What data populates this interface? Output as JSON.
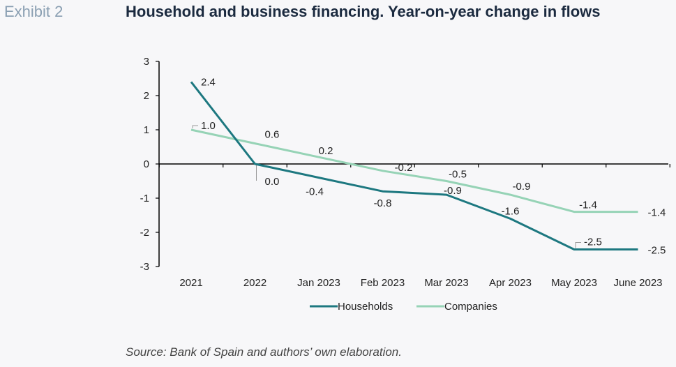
{
  "header": {
    "exhibit_label": "Exhibit 2",
    "title": "Household and business financing. Year-on-year change in flows"
  },
  "footer": {
    "source": "Source: Bank of Spain and authors’ own elaboration."
  },
  "chart_data": {
    "type": "line",
    "title": "Household and business financing. Year-on-year change in flows",
    "xlabel": "",
    "ylabel": "",
    "categories": [
      "2021",
      "2022",
      "Jan 2023",
      "Feb 2023",
      "Mar 2023",
      "Apr 2023",
      "May 2023",
      "June 2023"
    ],
    "ylim": [
      -3,
      3
    ],
    "yticks": [
      3,
      2,
      1,
      0,
      -1,
      -2,
      -3
    ],
    "grid": false,
    "legend": "bottom",
    "series": [
      {
        "name": "Households",
        "color": "#1d7880",
        "values": [
          2.4,
          0.0,
          -0.4,
          -0.8,
          -0.9,
          -1.6,
          -2.5,
          -2.5
        ],
        "labels": [
          "2.4",
          "0.0",
          "-0.4",
          "-0.8",
          "-0.9",
          "-1.6",
          "-2.5",
          "-2.5"
        ]
      },
      {
        "name": "Companies",
        "color": "#96d3b6",
        "values": [
          1.0,
          0.6,
          0.2,
          -0.2,
          -0.5,
          -0.9,
          -1.4,
          -1.4
        ],
        "labels": [
          "1.0",
          "0.6",
          "0.2",
          "-0.2",
          "-0.5",
          "-0.9",
          "-1.4",
          "-1.4"
        ]
      }
    ]
  }
}
